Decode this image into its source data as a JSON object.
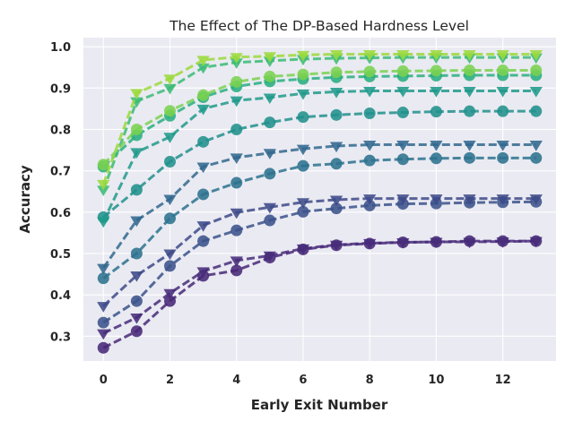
{
  "chart_data": {
    "type": "line",
    "title": "The Effect of The DP-Based Hardness Level",
    "xlabel": "Early Exit Number",
    "ylabel": "Accuracy",
    "xlim": [
      -0.6,
      13.6
    ],
    "ylim": [
      0.24,
      1.022
    ],
    "xticks": [
      0,
      2,
      4,
      6,
      8,
      10,
      12
    ],
    "yticks": [
      0.3,
      0.4,
      0.5,
      0.6,
      0.7,
      0.8,
      0.9,
      1.0
    ],
    "xtick_labels": [
      "0",
      "2",
      "4",
      "6",
      "8",
      "10",
      "12"
    ],
    "ytick_labels": [
      "0.3",
      "0.4",
      "0.5",
      "0.6",
      "0.7",
      "0.8",
      "0.9",
      "1.0"
    ],
    "grid": true,
    "background_color": "#eaeaf2",
    "grid_color": "#ffffff",
    "line_style": "dashed",
    "x": [
      0,
      1,
      2,
      3,
      4,
      5,
      6,
      7,
      8,
      9,
      10,
      11,
      12,
      13
    ],
    "series": [
      {
        "marker": "circle",
        "color": "#482878",
        "values": [
          0.272,
          0.312,
          0.385,
          0.446,
          0.459,
          0.49,
          0.51,
          0.52,
          0.524,
          0.527,
          0.528,
          0.53,
          0.53,
          0.53
        ]
      },
      {
        "marker": "triangle",
        "color": "#472c7a",
        "values": [
          0.307,
          0.345,
          0.404,
          0.457,
          0.483,
          0.495,
          0.512,
          0.521,
          0.525,
          0.527,
          0.528,
          0.528,
          0.529,
          0.53
        ]
      },
      {
        "marker": "circle",
        "color": "#3b528b",
        "values": [
          0.333,
          0.385,
          0.47,
          0.53,
          0.556,
          0.58,
          0.601,
          0.609,
          0.616,
          0.62,
          0.621,
          0.623,
          0.624,
          0.625
        ]
      },
      {
        "marker": "triangle",
        "color": "#3e4a89",
        "values": [
          0.373,
          0.447,
          0.5,
          0.568,
          0.599,
          0.612,
          0.624,
          0.63,
          0.633,
          0.633,
          0.633,
          0.633,
          0.633,
          0.633
        ]
      },
      {
        "marker": "circle",
        "color": "#2c728e",
        "values": [
          0.44,
          0.5,
          0.585,
          0.643,
          0.671,
          0.693,
          0.712,
          0.717,
          0.725,
          0.728,
          0.73,
          0.731,
          0.731,
          0.731
        ]
      },
      {
        "marker": "triangle",
        "color": "#31688e",
        "values": [
          0.465,
          0.58,
          0.632,
          0.71,
          0.732,
          0.743,
          0.753,
          0.76,
          0.763,
          0.763,
          0.763,
          0.763,
          0.763,
          0.763
        ]
      },
      {
        "marker": "circle",
        "color": "#21918c",
        "values": [
          0.588,
          0.654,
          0.722,
          0.77,
          0.8,
          0.817,
          0.83,
          0.835,
          0.839,
          0.841,
          0.843,
          0.844,
          0.844,
          0.844
        ]
      },
      {
        "marker": "triangle",
        "color": "#1f9a8a",
        "values": [
          0.578,
          0.745,
          0.782,
          0.85,
          0.87,
          0.877,
          0.887,
          0.891,
          0.893,
          0.893,
          0.893,
          0.893,
          0.893,
          0.893
        ]
      },
      {
        "marker": "circle",
        "color": "#28ae80",
        "values": [
          0.71,
          0.786,
          0.833,
          0.878,
          0.904,
          0.916,
          0.922,
          0.926,
          0.928,
          0.929,
          0.93,
          0.931,
          0.931,
          0.931
        ]
      },
      {
        "marker": "triangle",
        "color": "#3bbb75",
        "values": [
          0.654,
          0.868,
          0.9,
          0.95,
          0.962,
          0.966,
          0.97,
          0.972,
          0.973,
          0.974,
          0.974,
          0.974,
          0.974,
          0.974
        ]
      },
      {
        "marker": "circle",
        "color": "#7ad151",
        "values": [
          0.715,
          0.8,
          0.845,
          0.883,
          0.915,
          0.928,
          0.933,
          0.938,
          0.94,
          0.941,
          0.942,
          0.943,
          0.943,
          0.943
        ]
      },
      {
        "marker": "triangle",
        "color": "#9bd93c",
        "values": [
          0.668,
          0.888,
          0.923,
          0.968,
          0.975,
          0.977,
          0.98,
          0.982,
          0.982,
          0.982,
          0.982,
          0.982,
          0.982,
          0.982
        ]
      }
    ]
  }
}
